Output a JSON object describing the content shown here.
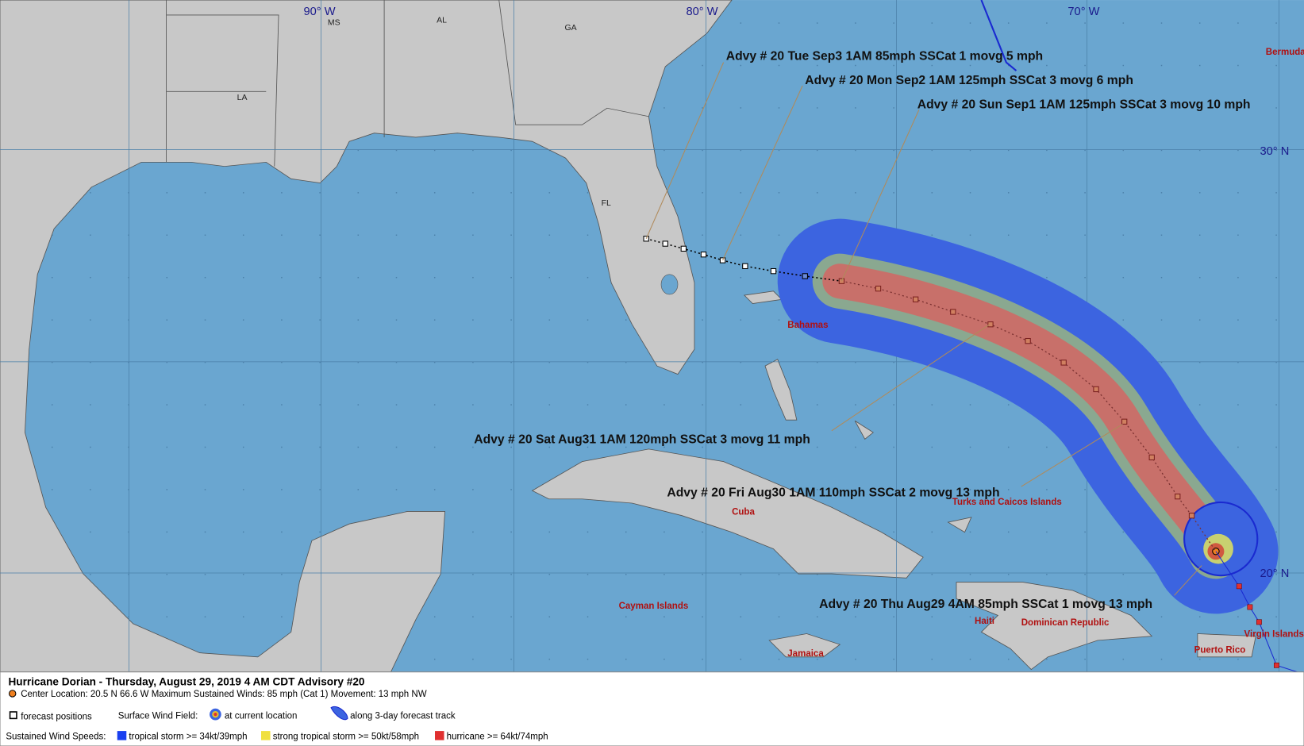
{
  "grid_labels": [
    "90° W",
    "80° W",
    "70° W",
    "30° N",
    "20° N"
  ],
  "place_labels": [
    "MS",
    "AL",
    "GA",
    "LA",
    "FL",
    "Bermuda",
    "Bahamas",
    "Cuba",
    "Turks and Caicos Islands",
    "Cayman Islands",
    "Haiti",
    "Dominican Republic",
    "Jamaica",
    "Puerto Rico",
    "Virgin Islands"
  ],
  "advisories": [
    "Advy # 20 Tue Sep3 1AM  85mph SSCat 1 movg 5 mph",
    "Advy # 20 Mon Sep2 1AM  125mph SSCat 3 movg 6 mph",
    "Advy # 20 Sun Sep1 1AM  125mph SSCat 3 movg 10 mph",
    "Advy # 20 Sat Aug31 1AM  120mph SSCat 3 movg 11 mph",
    "Advy # 20 Fri Aug30 1AM  110mph SSCat 2 movg 13 mph",
    "Advy # 20 Thu Aug29 4AM  85mph SSCat 1 movg 13 mph"
  ],
  "footer": {
    "title": "Hurricane Dorian  -  Thursday, August 29, 2019  4 AM CDT   Advisory #20",
    "center": "Center Location: 20.5 N  66.6 W   Maximum Sustained Winds: 85 mph (Cat 1) Movement: 13 mph NW",
    "forecast_positions": "forecast positions",
    "surface_wind_field": "Surface Wind Field:",
    "at_current": "at current location",
    "along_track": "along 3-day forecast track",
    "sustained": "Sustained Wind Speeds:",
    "ts": "tropical storm >= 34kt/39mph",
    "sts": "strong tropical storm >= 50kt/58mph",
    "hurricane": "hurricane >= 64kt/74mph"
  }
}
